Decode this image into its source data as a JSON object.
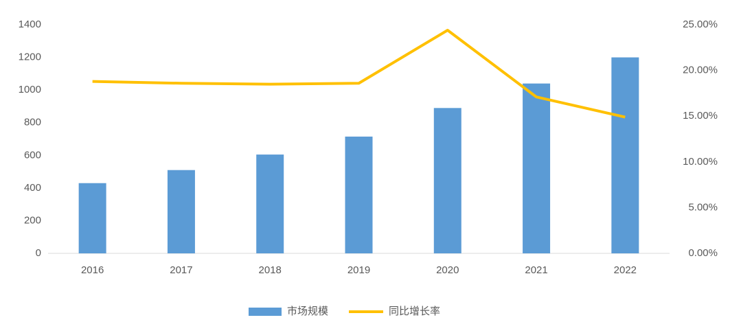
{
  "chart_data": {
    "type": "bar",
    "categories": [
      "2016",
      "2017",
      "2018",
      "2019",
      "2020",
      "2021",
      "2022"
    ],
    "series": [
      {
        "name": "市场规模",
        "type": "bar",
        "color": "#5b9bd5",
        "values": [
          430,
          510,
          605,
          715,
          890,
          1040,
          1200
        ]
      },
      {
        "name": "同比增长率",
        "type": "line",
        "axis": "y2",
        "color": "#ffc000",
        "values": [
          18.8,
          18.6,
          18.5,
          18.6,
          24.4,
          17.1,
          14.9
        ]
      }
    ],
    "ylim": [
      0,
      1400
    ],
    "yticks": [
      0,
      200,
      400,
      600,
      800,
      1000,
      1200,
      1400
    ],
    "y2lim": [
      0,
      25
    ],
    "y2ticks": [
      {
        "value": 0,
        "label": "0.00%"
      },
      {
        "value": 5,
        "label": "5.00%"
      },
      {
        "value": 10,
        "label": "10.00%"
      },
      {
        "value": 15,
        "label": "15.00%"
      },
      {
        "value": 20,
        "label": "20.00%"
      },
      {
        "value": 25,
        "label": "25.00%"
      }
    ],
    "grid": false,
    "legend": "bottom"
  }
}
